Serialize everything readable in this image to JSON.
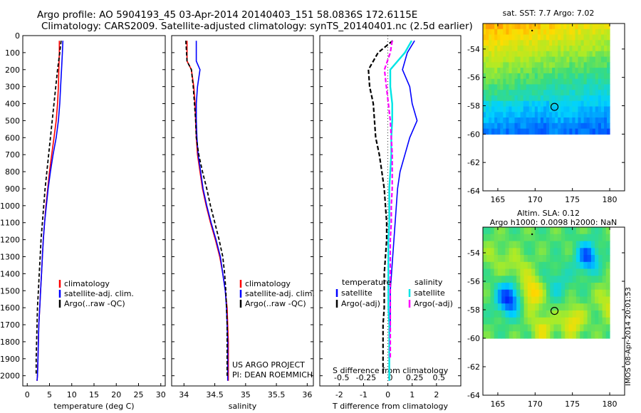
{
  "header": {
    "line1": "Argo profile: AO 5904193_45 03-Apr-2014 20140403_151 58.0836S 172.6115E",
    "line2": "Climatology: CARS2009. Satellite-adjusted climatology: synTS_20140401.nc (2.5d earlier)"
  },
  "side_text": "IMOS 08-Apr-2014 20:01:53",
  "colors": {
    "climatology": "#ff0000",
    "satellite": "#0000ff",
    "argo": "#000000",
    "sat_salinity": "#00e5e5",
    "argo_salinity": "#ff00ff"
  },
  "chart_data": [
    {
      "type": "line",
      "xlabel": "temperature (deg C)",
      "xlim": [
        -1,
        31
      ],
      "xticks": [
        "0",
        "5",
        "10",
        "15",
        "20",
        "25",
        "30"
      ],
      "ylim": [
        2060,
        0
      ],
      "yticks": [
        "0",
        "100",
        "200",
        "300",
        "400",
        "500",
        "600",
        "700",
        "800",
        "900",
        "1000",
        "1100",
        "1200",
        "1300",
        "1400",
        "1500",
        "1600",
        "1700",
        "1800",
        "1900",
        "2000"
      ],
      "legend": [
        "climatology",
        "satellite-adj. clim.",
        "Argo(..raw -QC)"
      ],
      "series": [
        {
          "name": "climatology",
          "x": [
            7.2,
            7.2,
            7.1,
            7.0,
            6.8,
            6.5,
            6.0,
            5.5,
            5.0,
            4.6,
            4.2,
            3.9,
            3.6,
            3.4,
            3.2,
            3.0,
            2.8,
            2.6,
            2.5,
            2.4,
            2.3,
            2.2
          ],
          "y": [
            30,
            100,
            200,
            300,
            400,
            500,
            600,
            700,
            800,
            900,
            1000,
            1100,
            1200,
            1300,
            1400,
            1500,
            1600,
            1700,
            1800,
            1900,
            2000,
            2030
          ]
        },
        {
          "name": "satellite-adj. clim.",
          "x": [
            8.0,
            7.9,
            7.7,
            7.5,
            7.3,
            7.0,
            6.5,
            5.8,
            5.2,
            4.7,
            4.3,
            3.9,
            3.6,
            3.4,
            3.2,
            3.0,
            2.8,
            2.6,
            2.5,
            2.4,
            2.3,
            2.2
          ],
          "y": [
            30,
            100,
            200,
            300,
            400,
            500,
            600,
            700,
            800,
            900,
            1000,
            1100,
            1200,
            1300,
            1400,
            1500,
            1600,
            1700,
            1800,
            1900,
            2000,
            2030
          ]
        },
        {
          "name": "Argo(..raw -QC)",
          "x": [
            7.6,
            7.3,
            6.8,
            6.4,
            6.0,
            5.6,
            5.2,
            4.8,
            4.4,
            4.0,
            3.7,
            3.4,
            3.1,
            2.9,
            2.7,
            2.5,
            2.3,
            2.2,
            2.1,
            2.0,
            2.0
          ],
          "y": [
            30,
            100,
            200,
            300,
            400,
            500,
            600,
            700,
            800,
            900,
            1000,
            1100,
            1200,
            1300,
            1400,
            1500,
            1600,
            1700,
            1800,
            1900,
            2000
          ]
        }
      ]
    },
    {
      "type": "line",
      "xlabel": "salinity",
      "xlim": [
        33.8,
        36.1
      ],
      "xticks": [
        "34",
        "34.5",
        "35",
        "35.5",
        "36"
      ],
      "ylim": [
        2060,
        0
      ],
      "legend": [
        "climatology",
        "satellite-adj. clim.",
        "Argo(..raw -QC)"
      ],
      "annotations": [
        "US ARGO PROJECT",
        "PI: DEAN ROEMMICH"
      ],
      "series": [
        {
          "name": "climatology",
          "x": [
            34.05,
            34.05,
            34.12,
            34.16,
            34.18,
            34.19,
            34.2,
            34.22,
            34.26,
            34.3,
            34.36,
            34.43,
            34.51,
            34.58,
            34.63,
            34.67,
            34.7,
            34.71,
            34.72,
            34.72,
            34.72
          ],
          "y": [
            30,
            150,
            200,
            300,
            400,
            500,
            600,
            700,
            800,
            900,
            1000,
            1100,
            1200,
            1300,
            1400,
            1500,
            1600,
            1700,
            1800,
            1900,
            2030
          ]
        },
        {
          "name": "satellite-adj. clim.",
          "x": [
            34.2,
            34.2,
            34.26,
            34.22,
            34.2,
            34.2,
            34.21,
            34.23,
            34.27,
            34.31,
            34.37,
            34.44,
            34.52,
            34.59,
            34.63,
            34.67,
            34.69,
            34.7,
            34.71,
            34.71,
            34.71
          ],
          "y": [
            30,
            150,
            200,
            300,
            400,
            500,
            600,
            700,
            800,
            900,
            1000,
            1100,
            1200,
            1300,
            1400,
            1500,
            1600,
            1700,
            1800,
            1900,
            2030
          ]
        },
        {
          "name": "Argo(..raw -QC)",
          "x": [
            34.03,
            34.05,
            34.12,
            34.15,
            34.17,
            34.19,
            34.2,
            34.24,
            34.3,
            34.37,
            34.43,
            34.5,
            34.57,
            34.63,
            34.66,
            34.68,
            34.69,
            34.7,
            34.7,
            34.7,
            34.7
          ],
          "y": [
            30,
            150,
            200,
            300,
            400,
            500,
            600,
            700,
            800,
            900,
            1000,
            1100,
            1200,
            1300,
            1400,
            1500,
            1600,
            1700,
            1800,
            1900,
            2000
          ]
        }
      ]
    },
    {
      "type": "line",
      "xlabel": "T difference from climatology",
      "xlabel2": "S difference from climatology",
      "xlim": [
        -2.8,
        3.0
      ],
      "xticks": [
        "-2",
        "-1",
        "0",
        "1",
        "2"
      ],
      "xticks2": [
        "-0.5",
        "-0.25",
        "0",
        "0.25",
        "0.5"
      ],
      "ylim": [
        2060,
        0
      ],
      "legend_titles": [
        "temperature",
        "salinity"
      ],
      "legend": [
        "satellite",
        "Argo(-adj)",
        "satellite",
        "Argo(-adj)"
      ],
      "series": [
        {
          "name": "satellite",
          "x": [
            1.1,
            0.8,
            0.6,
            0.9,
            1.0,
            1.2,
            0.9,
            0.7,
            0.5,
            0.4,
            0.35,
            0.3,
            0.25,
            0.2,
            0.15,
            0.1,
            0.1,
            0.1,
            0.05,
            0.05,
            0.05
          ],
          "y": [
            30,
            100,
            200,
            300,
            400,
            500,
            600,
            700,
            800,
            900,
            1000,
            1100,
            1200,
            1300,
            1400,
            1500,
            1600,
            1700,
            1800,
            1900,
            2030
          ]
        },
        {
          "name": "Argo(-adj)",
          "x": [
            0.2,
            -0.4,
            -0.8,
            -0.75,
            -0.6,
            -0.55,
            -0.5,
            -0.35,
            -0.25,
            -0.15,
            -0.1,
            -0.05,
            -0.05,
            -0.1,
            -0.15,
            -0.15,
            -0.15,
            -0.2,
            -0.2,
            -0.2,
            -0.2
          ],
          "y": [
            30,
            100,
            200,
            300,
            400,
            500,
            600,
            700,
            800,
            900,
            1000,
            1100,
            1200,
            1300,
            1400,
            1500,
            1600,
            1700,
            1800,
            1900,
            2000
          ]
        }
      ],
      "series2": [
        {
          "name": "satellite",
          "x": [
            0.22,
            0.15,
            0.0,
            0.0,
            0.02,
            0.02,
            0.01,
            0.01,
            0.0,
            -0.01,
            -0.01,
            -0.01,
            -0.02,
            -0.02,
            -0.02,
            -0.02,
            -0.02,
            -0.01,
            -0.01,
            -0.01,
            -0.01
          ],
          "y": [
            30,
            100,
            200,
            300,
            400,
            500,
            600,
            700,
            800,
            900,
            1000,
            1100,
            1200,
            1300,
            1400,
            1500,
            1600,
            1700,
            1800,
            1900,
            2030
          ]
        },
        {
          "name": "Argo(-adj)",
          "x": [
            0.02,
            0.0,
            -0.06,
            -0.04,
            -0.02,
            0.0,
            0.01,
            0.02,
            0.02,
            0.02,
            0.01,
            0.01,
            0.0,
            0.0,
            0.0,
            0.0,
            0.0,
            0.0,
            0.0,
            0.0
          ],
          "y": [
            30,
            100,
            200,
            300,
            400,
            500,
            600,
            700,
            800,
            900,
            1000,
            1100,
            1200,
            1300,
            1400,
            1500,
            1600,
            1700,
            1800,
            1900
          ]
        }
      ]
    },
    {
      "type": "heatmap",
      "title": "sat. SST: 7.7 Argo: 7.02",
      "xlim": [
        163,
        182
      ],
      "ylim": [
        -64,
        -52.2
      ],
      "xticks": [
        "165",
        "170",
        "175",
        "180"
      ],
      "yticks": [
        "-54",
        "-56",
        "-58",
        "-60",
        "-62",
        "-64"
      ],
      "marker": {
        "lon": 172.6,
        "lat": -58.08
      }
    },
    {
      "type": "heatmap",
      "title": "Altim. SLA: 0.12",
      "subtitle": "Argo h1000: 0.0098 h2000: NaN",
      "xlim": [
        163,
        182
      ],
      "ylim": [
        -64,
        -52.2
      ],
      "xticks": [
        "165",
        "170",
        "175",
        "180"
      ],
      "yticks": [
        "-54",
        "-56",
        "-58",
        "-60",
        "-62",
        "-64"
      ],
      "marker": {
        "lon": 172.6,
        "lat": -58.08
      }
    }
  ]
}
